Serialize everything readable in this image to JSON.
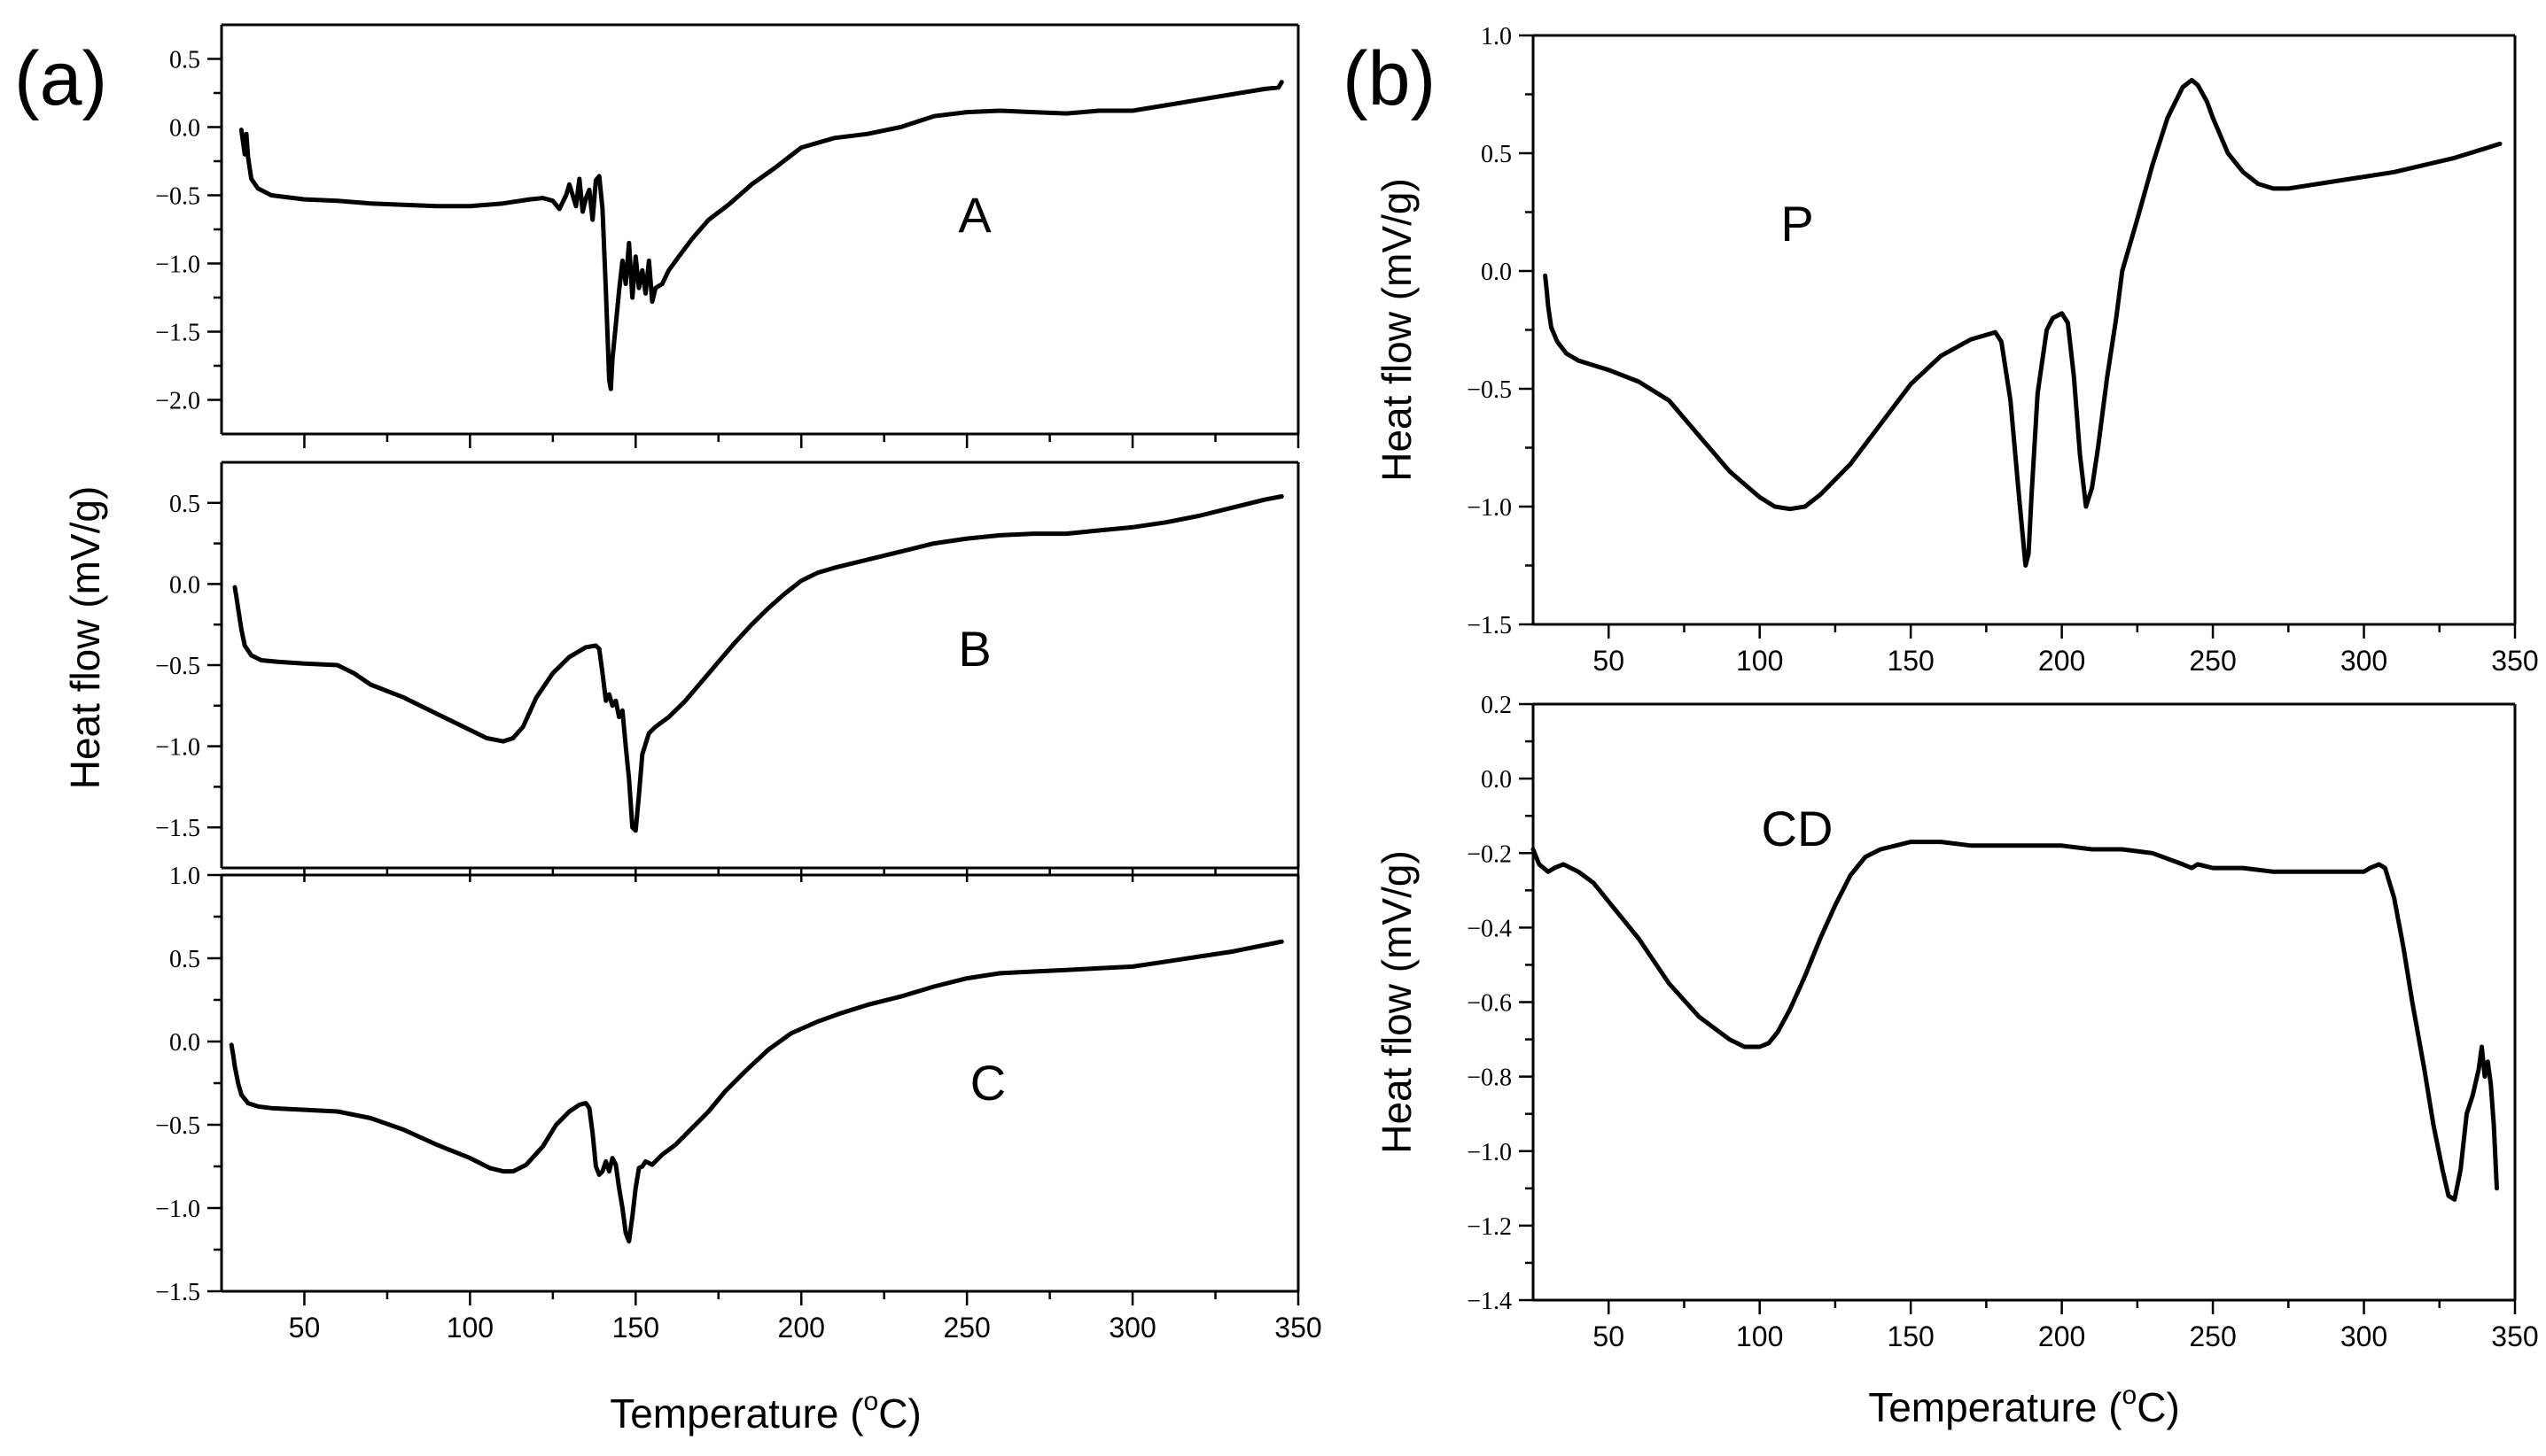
{
  "figure": {
    "panel_a_tag": "(a)",
    "panel_b_tag": "(b)",
    "panel_a_ylabel": "Heat flow (mV/g)",
    "xlabel_main": "Temperature (",
    "xlabel_sup": "o",
    "xlabel_end": "C)"
  },
  "chart_data": [
    {
      "id": "a-A",
      "type": "line",
      "panel": "(a)",
      "curve_label": "A",
      "xlim": [
        25,
        350
      ],
      "ylim": [
        -2.25,
        0.75
      ],
      "xticks": [
        50,
        100,
        150,
        200,
        250,
        300,
        350
      ],
      "yticks": [
        -2.0,
        -1.5,
        -1.0,
        -0.5,
        0.0,
        0.5
      ],
      "ytick_labels": [
        "−2.0",
        "−1.5",
        "−1.0",
        "−0.5",
        "0.0",
        "0.5"
      ],
      "show_xtick_labels": false,
      "xlabel": "",
      "ylabel": "",
      "series": [
        {
          "name": "A",
          "x": [
            31,
            32,
            32.5,
            33,
            34,
            36,
            40,
            50,
            60,
            70,
            80,
            90,
            100,
            110,
            118,
            122,
            125,
            127,
            129,
            130,
            132,
            133,
            134,
            135,
            136,
            137,
            138,
            139,
            140,
            141,
            142,
            142.5,
            143,
            144,
            145,
            146,
            147,
            148,
            149,
            150,
            151,
            152,
            153,
            154,
            155,
            156,
            158,
            160,
            163,
            167,
            172,
            178,
            185,
            192,
            200,
            210,
            220,
            230,
            240,
            250,
            260,
            270,
            280,
            290,
            300,
            310,
            320,
            330,
            340,
            344,
            345
          ],
          "y": [
            -0.02,
            -0.2,
            -0.05,
            -0.22,
            -0.38,
            -0.45,
            -0.5,
            -0.53,
            -0.54,
            -0.56,
            -0.57,
            -0.58,
            -0.58,
            -0.56,
            -0.53,
            -0.52,
            -0.54,
            -0.6,
            -0.5,
            -0.42,
            -0.58,
            -0.38,
            -0.62,
            -0.52,
            -0.46,
            -0.68,
            -0.39,
            -0.36,
            -0.6,
            -1.2,
            -1.85,
            -1.92,
            -1.7,
            -1.45,
            -1.2,
            -0.98,
            -1.15,
            -0.85,
            -1.25,
            -0.95,
            -1.18,
            -1.05,
            -1.22,
            -0.98,
            -1.28,
            -1.18,
            -1.15,
            -1.05,
            -0.95,
            -0.82,
            -0.68,
            -0.57,
            -0.42,
            -0.3,
            -0.15,
            -0.08,
            -0.05,
            0.0,
            0.08,
            0.11,
            0.12,
            0.11,
            0.1,
            0.12,
            0.12,
            0.16,
            0.2,
            0.24,
            0.28,
            0.29,
            0.33
          ]
        }
      ]
    },
    {
      "id": "a-B",
      "type": "line",
      "panel": "(a)",
      "curve_label": "B",
      "xlim": [
        25,
        350
      ],
      "ylim": [
        -1.75,
        0.75
      ],
      "xticks": [
        50,
        100,
        150,
        200,
        250,
        300,
        350
      ],
      "yticks": [
        -1.5,
        -1.0,
        -0.5,
        0.0,
        0.5
      ],
      "ytick_labels": [
        "−1.5",
        "−1.0",
        "−0.5",
        "0.0",
        "0.5"
      ],
      "show_xtick_labels": false,
      "xlabel": "",
      "ylabel": "",
      "series": [
        {
          "name": "B",
          "x": [
            29,
            29.5,
            30,
            31,
            32,
            34,
            37,
            42,
            50,
            60,
            65,
            70,
            80,
            90,
            100,
            105,
            110,
            113,
            116,
            120,
            125,
            130,
            135,
            138,
            139,
            140,
            141,
            142,
            143,
            144,
            145,
            146,
            147,
            148,
            149,
            150,
            151,
            152,
            154,
            156,
            160,
            165,
            170,
            175,
            180,
            185,
            190,
            195,
            200,
            205,
            210,
            220,
            230,
            240,
            250,
            260,
            270,
            280,
            290,
            300,
            310,
            320,
            330,
            340,
            345
          ],
          "y": [
            -0.02,
            -0.08,
            -0.15,
            -0.28,
            -0.38,
            -0.44,
            -0.47,
            -0.48,
            -0.49,
            -0.5,
            -0.55,
            -0.62,
            -0.7,
            -0.8,
            -0.9,
            -0.95,
            -0.97,
            -0.95,
            -0.88,
            -0.7,
            -0.55,
            -0.45,
            -0.39,
            -0.38,
            -0.4,
            -0.55,
            -0.72,
            -0.68,
            -0.75,
            -0.72,
            -0.82,
            -0.78,
            -1.0,
            -1.2,
            -1.5,
            -1.52,
            -1.3,
            -1.05,
            -0.92,
            -0.88,
            -0.82,
            -0.72,
            -0.6,
            -0.48,
            -0.36,
            -0.25,
            -0.15,
            -0.06,
            0.02,
            0.07,
            0.1,
            0.15,
            0.2,
            0.25,
            0.28,
            0.3,
            0.31,
            0.31,
            0.33,
            0.35,
            0.38,
            0.42,
            0.47,
            0.52,
            0.54
          ]
        }
      ]
    },
    {
      "id": "a-C",
      "type": "line",
      "panel": "(a)",
      "curve_label": "C",
      "xlim": [
        25,
        350
      ],
      "ylim": [
        -1.5,
        1.0
      ],
      "xticks": [
        50,
        100,
        150,
        200,
        250,
        300,
        350
      ],
      "yticks": [
        -1.5,
        -1.0,
        -0.5,
        0.0,
        0.5,
        1.0
      ],
      "ytick_labels": [
        "−1.5",
        "−1.0",
        "−0.5",
        "0.0",
        "0.5",
        "1.0"
      ],
      "show_xtick_labels": true,
      "xlabel": "Temperature (°C)",
      "ylabel": "",
      "series": [
        {
          "name": "C",
          "x": [
            28,
            28.5,
            29,
            30,
            31,
            33,
            36,
            40,
            50,
            60,
            70,
            80,
            90,
            100,
            106,
            110,
            113,
            117,
            122,
            126,
            130,
            133,
            135,
            136,
            137,
            138,
            139,
            140,
            141,
            142,
            143,
            144,
            145,
            146,
            147,
            148,
            149,
            150,
            151,
            152,
            153,
            155,
            158,
            162,
            167,
            172,
            177,
            183,
            190,
            197,
            205,
            212,
            220,
            230,
            240,
            250,
            260,
            270,
            280,
            290,
            300,
            310,
            320,
            330,
            340,
            345
          ],
          "y": [
            -0.02,
            -0.08,
            -0.15,
            -0.25,
            -0.32,
            -0.37,
            -0.39,
            -0.4,
            -0.41,
            -0.42,
            -0.46,
            -0.53,
            -0.62,
            -0.7,
            -0.76,
            -0.78,
            -0.78,
            -0.74,
            -0.63,
            -0.5,
            -0.42,
            -0.38,
            -0.37,
            -0.4,
            -0.55,
            -0.75,
            -0.8,
            -0.78,
            -0.72,
            -0.78,
            -0.7,
            -0.74,
            -0.88,
            -1.0,
            -1.15,
            -1.2,
            -1.05,
            -0.88,
            -0.76,
            -0.75,
            -0.72,
            -0.74,
            -0.68,
            -0.62,
            -0.52,
            -0.42,
            -0.3,
            -0.18,
            -0.05,
            0.05,
            0.12,
            0.17,
            0.22,
            0.27,
            0.33,
            0.38,
            0.41,
            0.42,
            0.43,
            0.44,
            0.45,
            0.48,
            0.51,
            0.54,
            0.58,
            0.6
          ]
        }
      ]
    },
    {
      "id": "b-P",
      "type": "line",
      "panel": "(b)",
      "curve_label": "P",
      "xlim": [
        25,
        350
      ],
      "ylim": [
        -1.5,
        1.0
      ],
      "xticks": [
        50,
        100,
        150,
        200,
        250,
        300,
        350
      ],
      "yticks": [
        -1.5,
        -1.0,
        -0.5,
        0.0,
        0.5,
        1.0
      ],
      "ytick_labels": [
        "−1.5",
        "−1.0",
        "−0.5",
        "0.0",
        "0.5",
        "1.0"
      ],
      "show_xtick_labels": true,
      "xlabel": "",
      "ylabel": "Heat flow (mV/g)",
      "series": [
        {
          "name": "P",
          "x": [
            29,
            29.5,
            30,
            31,
            33,
            36,
            40,
            50,
            60,
            70,
            80,
            90,
            100,
            105,
            110,
            115,
            120,
            130,
            140,
            150,
            160,
            170,
            178,
            180,
            183,
            186,
            188,
            189,
            190,
            192,
            195,
            197,
            200,
            202,
            204,
            206,
            208,
            210,
            212,
            215,
            218,
            220,
            225,
            230,
            235,
            240,
            243,
            245,
            248,
            250,
            255,
            260,
            265,
            270,
            275,
            280,
            290,
            300,
            310,
            320,
            330,
            340,
            345
          ],
          "y": [
            -0.02,
            -0.08,
            -0.15,
            -0.24,
            -0.3,
            -0.35,
            -0.38,
            -0.42,
            -0.47,
            -0.55,
            -0.7,
            -0.85,
            -0.96,
            -1.0,
            -1.01,
            -1.0,
            -0.95,
            -0.82,
            -0.65,
            -0.48,
            -0.36,
            -0.29,
            -0.26,
            -0.3,
            -0.55,
            -0.98,
            -1.25,
            -1.2,
            -0.95,
            -0.52,
            -0.25,
            -0.2,
            -0.18,
            -0.22,
            -0.45,
            -0.78,
            -1.0,
            -0.92,
            -0.75,
            -0.45,
            -0.2,
            0.0,
            0.22,
            0.45,
            0.65,
            0.78,
            0.81,
            0.79,
            0.72,
            0.65,
            0.5,
            0.42,
            0.37,
            0.35,
            0.35,
            0.36,
            0.38,
            0.4,
            0.42,
            0.45,
            0.48,
            0.52,
            0.54
          ]
        }
      ]
    },
    {
      "id": "b-CD",
      "type": "line",
      "panel": "(b)",
      "curve_label": "CD",
      "xlim": [
        25,
        350
      ],
      "ylim": [
        -1.4,
        0.2
      ],
      "xticks": [
        50,
        100,
        150,
        200,
        250,
        300,
        350
      ],
      "yticks": [
        -1.4,
        -1.2,
        -1.0,
        -0.8,
        -0.6,
        -0.4,
        -0.2,
        0.0,
        0.2
      ],
      "ytick_labels": [
        "−1.4",
        "−1.2",
        "−1.0",
        "−0.8",
        "−0.6",
        "−0.4",
        "−0.2",
        "0.0",
        "0.2"
      ],
      "show_xtick_labels": true,
      "xlabel": "Temperature (°C)",
      "ylabel": "Heat flow (mV/g)",
      "series": [
        {
          "name": "CD",
          "x": [
            25,
            27,
            30,
            32,
            35,
            40,
            45,
            50,
            60,
            70,
            80,
            90,
            95,
            100,
            103,
            106,
            110,
            115,
            120,
            125,
            130,
            135,
            140,
            145,
            150,
            155,
            160,
            170,
            180,
            190,
            200,
            210,
            220,
            230,
            240,
            243,
            245,
            250,
            260,
            270,
            280,
            290,
            300,
            302,
            305,
            307,
            310,
            313,
            316,
            320,
            323,
            326,
            328,
            330,
            332,
            334,
            336,
            338,
            339,
            340,
            341,
            342,
            343,
            344
          ],
          "y": [
            -0.19,
            -0.23,
            -0.25,
            -0.24,
            -0.23,
            -0.25,
            -0.28,
            -0.33,
            -0.43,
            -0.55,
            -0.64,
            -0.7,
            -0.72,
            -0.72,
            -0.71,
            -0.68,
            -0.62,
            -0.53,
            -0.43,
            -0.34,
            -0.26,
            -0.21,
            -0.19,
            -0.18,
            -0.17,
            -0.17,
            -0.17,
            -0.18,
            -0.18,
            -0.18,
            -0.18,
            -0.19,
            -0.19,
            -0.2,
            -0.23,
            -0.24,
            -0.23,
            -0.24,
            -0.24,
            -0.25,
            -0.25,
            -0.25,
            -0.25,
            -0.24,
            -0.23,
            -0.24,
            -0.32,
            -0.45,
            -0.6,
            -0.78,
            -0.93,
            -1.05,
            -1.12,
            -1.13,
            -1.05,
            -0.9,
            -0.85,
            -0.78,
            -0.72,
            -0.8,
            -0.76,
            -0.82,
            -0.93,
            -1.1
          ]
        }
      ]
    }
  ]
}
